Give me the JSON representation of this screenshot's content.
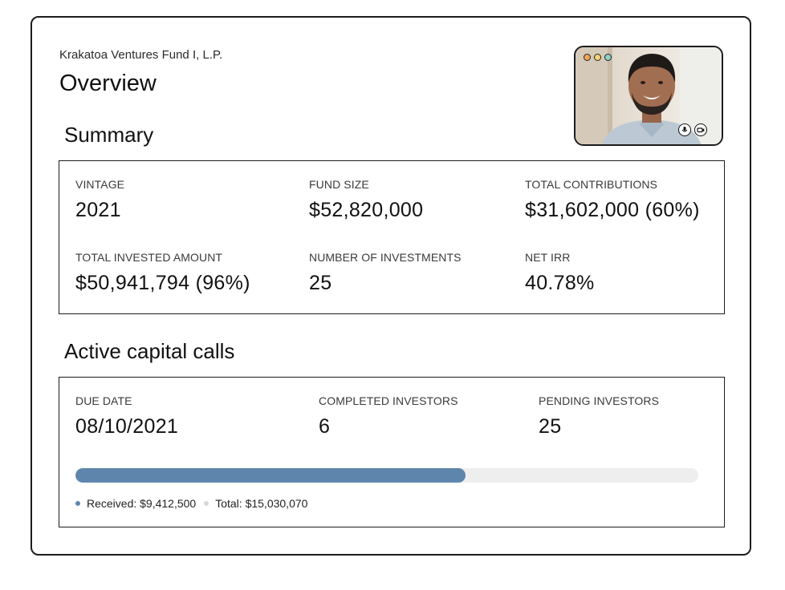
{
  "header": {
    "fund_name": "Krakatoa Ventures Fund I, L.P.",
    "title": "Overview"
  },
  "summary": {
    "heading": "Summary",
    "metrics": [
      {
        "label": "VINTAGE",
        "value": "2021"
      },
      {
        "label": "FUND SIZE",
        "value": "$52,820,000"
      },
      {
        "label": "TOTAL CONTRIBUTIONS",
        "value": "$31,602,000 (60%)"
      },
      {
        "label": "TOTAL INVESTED AMOUNT",
        "value": "$50,941,794 (96%)"
      },
      {
        "label": "NUMBER OF INVESTMENTS",
        "value": "25"
      },
      {
        "label": "NET IRR",
        "value": "40.78%"
      }
    ]
  },
  "capital_calls": {
    "heading": "Active capital calls",
    "metrics": [
      {
        "label": "DUE DATE",
        "value": "08/10/2021"
      },
      {
        "label": "COMPLETED INVESTORS",
        "value": "6"
      },
      {
        "label": "PENDING INVESTORS",
        "value": "25"
      }
    ],
    "progress_fraction": 0.626,
    "legend": {
      "received": "Received: $9,412,500",
      "total": "Total: $15,030,070"
    }
  },
  "video_call": {
    "window_dots": [
      "#f2a65a",
      "#f5d76e",
      "#8fd3c7"
    ],
    "controls": [
      "microphone-icon",
      "camera-icon"
    ]
  },
  "colors": {
    "progress_fill": "#5e86ac",
    "progress_track": "#eeeeee",
    "received_dot": "#5e86ac",
    "total_dot": "#d8d8d8"
  }
}
